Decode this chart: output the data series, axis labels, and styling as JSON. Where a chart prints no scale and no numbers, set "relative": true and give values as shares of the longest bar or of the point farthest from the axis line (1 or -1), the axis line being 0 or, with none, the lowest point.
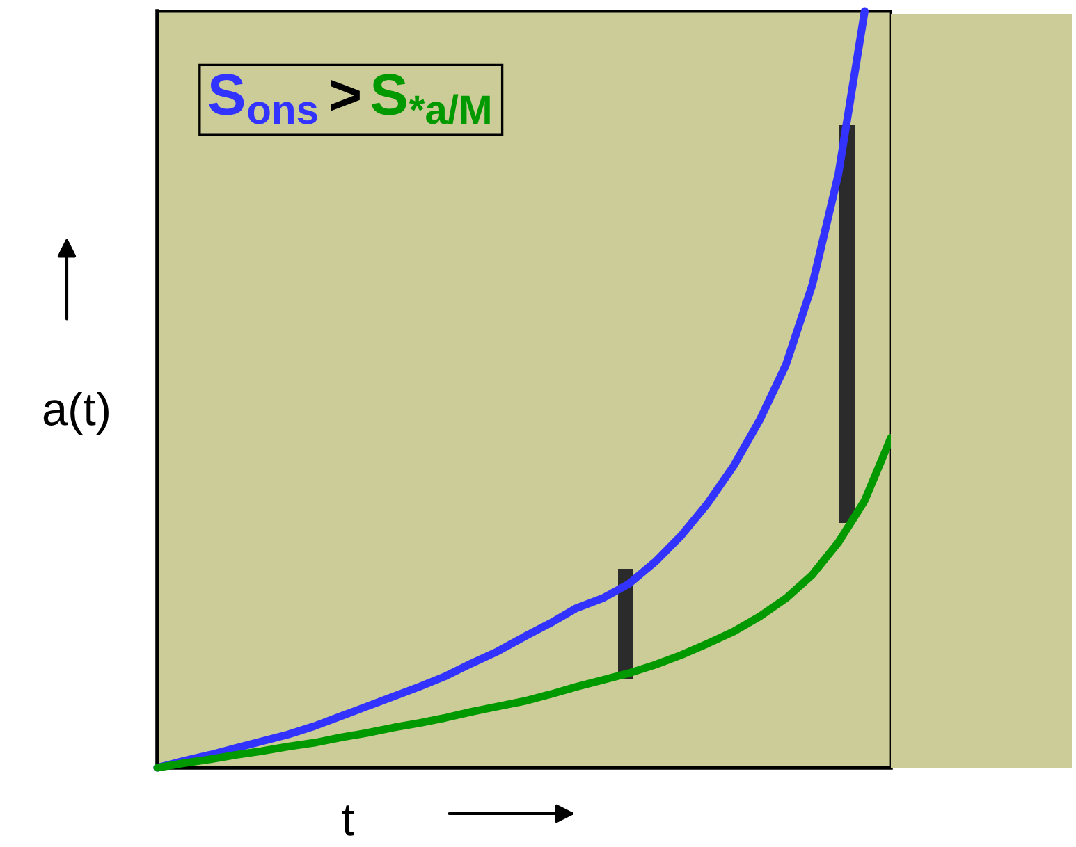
{
  "chart_data": {
    "type": "line",
    "relative": true,
    "xlabel": "t",
    "ylabel": "a(t)",
    "annotations": [
      ">"
    ],
    "grid": false,
    "categories": [
      null,
      null,
      null,
      null,
      null,
      null,
      null,
      null,
      null,
      null,
      null,
      null,
      null,
      null,
      null,
      null,
      null,
      null,
      null,
      null,
      null,
      null,
      null,
      null,
      null,
      null,
      null,
      null,
      null
    ],
    "series": [
      {
        "name": "S$_{ons}$",
        "color": "#3333ff",
        "values": [
          0,
          0.009,
          0.017,
          0.026,
          0.035,
          0.044,
          0.055,
          0.068,
          0.081,
          0.094,
          0.107,
          0.121,
          0.138,
          0.154,
          0.173,
          0.191,
          0.211,
          0.224,
          0.243,
          0.272,
          0.307,
          0.349,
          0.399,
          0.46,
          0.533,
          0.638,
          0.785,
          1.0,
          null
        ]
      },
      {
        "name": "S$_{*a/M}$",
        "color": "#009900",
        "values": [
          0,
          0.006,
          0.011,
          0.017,
          0.022,
          0.028,
          0.033,
          0.04,
          0.046,
          0.053,
          0.059,
          0.066,
          0.074,
          0.081,
          0.088,
          0.097,
          0.107,
          0.116,
          0.125,
          0.136,
          0.149,
          0.164,
          0.18,
          0.2,
          0.224,
          0.255,
          0.298,
          0.353,
          0.436
        ]
      }
    ]
  }
}
